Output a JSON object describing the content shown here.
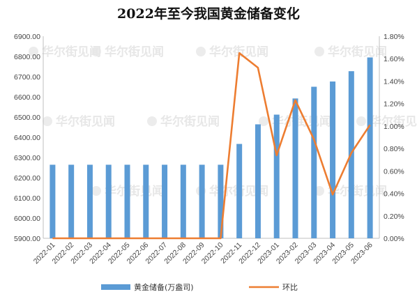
{
  "chart_data": {
    "type": "bar",
    "title": "2022年至今我国黄金储备变化",
    "categories": [
      "2022-01",
      "2022-02",
      "2022-03",
      "2022-04",
      "2022-05",
      "2022-06",
      "2022-07",
      "2022-08",
      "2022-09",
      "2022-10",
      "2022-11",
      "2022-12",
      "2023-01",
      "2023-02",
      "2023-03",
      "2023-04",
      "2023-05",
      "2023-06"
    ],
    "series": [
      {
        "name": "黄金储备(万盎司)",
        "type": "bar",
        "axis": "left",
        "color": "#5b9bd5",
        "values": [
          6264,
          6264,
          6264,
          6264,
          6264,
          6264,
          6264,
          6264,
          6264,
          6264,
          6367,
          6464,
          6512,
          6592,
          6650,
          6676,
          6727,
          6795
        ]
      },
      {
        "name": "环比",
        "type": "line",
        "axis": "right",
        "color": "#ed7d31",
        "values": [
          0,
          0,
          0,
          0,
          0,
          0,
          0,
          0,
          0,
          0,
          0.0165,
          0.0152,
          0.0074,
          0.0123,
          0.0088,
          0.0039,
          0.0076,
          0.0101
        ]
      }
    ],
    "y_left": {
      "ylim": [
        5900,
        6900
      ],
      "ticks": [
        "5900.00",
        "6000.00",
        "6100.00",
        "6200.00",
        "6300.00",
        "6400.00",
        "6500.00",
        "6600.00",
        "6700.00",
        "6800.00",
        "6900.00"
      ]
    },
    "y_right": {
      "ylim": [
        0,
        0.018
      ],
      "ticks": [
        "0.00%",
        "0.20%",
        "0.40%",
        "0.60%",
        "0.80%",
        "1.00%",
        "1.20%",
        "1.40%",
        "1.60%",
        "1.80%"
      ]
    },
    "grid": false,
    "legend": "bottom",
    "watermark": "华尔街见闻"
  }
}
